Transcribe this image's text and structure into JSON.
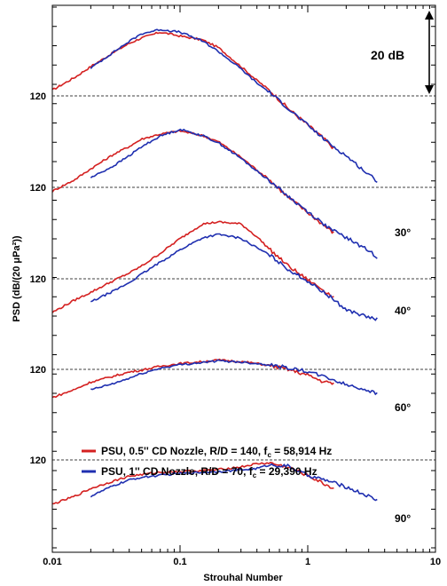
{
  "chart_data": {
    "type": "line",
    "xlabel": "Strouhal Number",
    "ylabel": "PSD (dB/(20 μPa²))",
    "x_scale": "log",
    "xlim": [
      0.01,
      10
    ],
    "x_ticks": [
      "0.01",
      "0.1",
      "1",
      "10"
    ],
    "reference_level_label": "120",
    "scale_bar_label": "20 dB",
    "colors": {
      "red": "#d42020",
      "blue": "#1f2fb0"
    },
    "legend": [
      {
        "color": "red",
        "label_main": "PSU, 0.5'' CD Nozzle, R/D = 140, f",
        "label_sub": "c",
        "label_tail": " = 58,914 Hz"
      },
      {
        "color": "blue",
        "label_main": "PSU,   1'' CD Nozzle, R/D = 70,  f",
        "label_sub": "c",
        "label_tail": " = 29,390 Hz"
      }
    ],
    "panels": [
      {
        "angle": "",
        "series": [
          {
            "color": "red",
            "x": [
              0.01,
              0.015,
              0.02,
              0.03,
              0.04,
              0.05,
              0.07,
              0.1,
              0.15,
              0.2,
              0.3,
              0.4,
              0.5,
              0.7,
              1.0,
              1.3,
              1.6
            ],
            "y": [
              121.5,
              124.8,
              127.6,
              131.2,
              133.6,
              135.0,
              136.5,
              135.5,
              134.5,
              132.5,
              127.6,
              124.0,
              121.5,
              116.8,
              112.5,
              109.3,
              106.4
            ]
          },
          {
            "color": "blue",
            "x": [
              0.02,
              0.03,
              0.04,
              0.05,
              0.07,
              0.1,
              0.15,
              0.2,
              0.3,
              0.4,
              0.5,
              0.7,
              1.0,
              1.5,
              2.0,
              3.0,
              3.5
            ],
            "y": [
              127.2,
              131.3,
              134.1,
              136.1,
              137.2,
              136.5,
              134.2,
              131.5,
              127.0,
              123.3,
              121.0,
              116.8,
              112.4,
              107.5,
              104.5,
              99.6,
              98.0
            ]
          }
        ]
      },
      {
        "angle": "30°",
        "series": [
          {
            "color": "red",
            "x": [
              0.01,
              0.015,
              0.02,
              0.03,
              0.04,
              0.05,
              0.07,
              0.1,
              0.15,
              0.2,
              0.3,
              0.4,
              0.5,
              0.7,
              1.0,
              1.3,
              1.6
            ],
            "y": [
              119.0,
              122.0,
              124.8,
              128.5,
              130.6,
              132.5,
              133.8,
              134.6,
              133.4,
              131.8,
              127.8,
              124.5,
              122.0,
              117.5,
              113.5,
              110.5,
              108.2
            ]
          },
          {
            "color": "blue",
            "x": [
              0.02,
              0.03,
              0.04,
              0.05,
              0.07,
              0.1,
              0.15,
              0.2,
              0.3,
              0.4,
              0.5,
              0.7,
              1.0,
              1.5,
              2.0,
              3.0,
              3.5
            ],
            "y": [
              122.5,
              125.5,
              128.2,
              130.5,
              133.3,
              135.0,
              133.4,
              131.5,
              127.5,
              124.2,
              121.8,
              117.7,
              113.7,
              109.2,
              107.0,
              103.6,
              102.0
            ]
          }
        ]
      },
      {
        "angle": "40°",
        "series": [
          {
            "color": "red",
            "x": [
              0.01,
              0.015,
              0.02,
              0.03,
              0.04,
              0.05,
              0.07,
              0.1,
              0.15,
              0.2,
              0.3,
              0.4,
              0.5,
              0.7,
              1.0,
              1.3,
              1.6
            ],
            "y": [
              111.3,
              114.5,
              116.5,
              119.5,
              121.5,
              123.3,
              126.6,
              130.4,
              134.2,
              134.7,
              134.2,
              130.9,
              127.7,
              123.4,
              119.7,
              117.3,
              115.2
            ]
          },
          {
            "color": "blue",
            "x": [
              0.02,
              0.03,
              0.04,
              0.05,
              0.07,
              0.1,
              0.15,
              0.2,
              0.3,
              0.4,
              0.5,
              0.7,
              1.0,
              1.5,
              2.0,
              3.0,
              3.5
            ],
            "y": [
              114.0,
              116.8,
              119.0,
              121.2,
              124.3,
              127.5,
              130.6,
              131.5,
              130.5,
              128.0,
              126.2,
              122.5,
              119.4,
              115.3,
              112.0,
              110.0,
              109.5
            ]
          }
        ]
      },
      {
        "angle": "60°",
        "series": [
          {
            "color": "red",
            "x": [
              0.01,
              0.015,
              0.02,
              0.03,
              0.04,
              0.05,
              0.07,
              0.1,
              0.15,
              0.2,
              0.3,
              0.4,
              0.5,
              0.7,
              1.0,
              1.3,
              1.6
            ],
            "y": [
              112.7,
              114.8,
              116.7,
              118.2,
              119.3,
              119.8,
              120.8,
              121.5,
              122.0,
              122.4,
              122.0,
              121.5,
              121.0,
              120.0,
              118.5,
              116.9,
              116.3
            ]
          },
          {
            "color": "blue",
            "x": [
              0.02,
              0.03,
              0.04,
              0.05,
              0.07,
              0.1,
              0.15,
              0.2,
              0.3,
              0.4,
              0.5,
              0.7,
              1.0,
              1.5,
              2.0,
              3.0,
              3.5
            ],
            "y": [
              114.7,
              116.3,
              117.7,
              118.9,
              120.3,
              121.2,
              121.8,
              122.2,
              121.9,
              121.5,
              121.2,
              120.4,
              119.4,
              117.6,
              116.0,
              114.6,
              113.6
            ]
          }
        ]
      },
      {
        "angle": "90°",
        "series": [
          {
            "color": "red",
            "x": [
              0.01,
              0.015,
              0.02,
              0.03,
              0.04,
              0.05,
              0.07,
              0.1,
              0.15,
              0.2,
              0.3,
              0.4,
              0.5,
              0.7,
              1.0,
              1.3,
              1.6
            ],
            "y": [
              108.5,
              110.6,
              112.6,
              114.5,
              115.8,
              116.2,
              116.8,
              117.0,
              117.2,
              117.5,
              118.2,
              119.0,
              119.2,
              118.1,
              116.0,
              114.0,
              112.6
            ]
          },
          {
            "color": "blue",
            "x": [
              0.02,
              0.03,
              0.04,
              0.05,
              0.07,
              0.1,
              0.15,
              0.2,
              0.3,
              0.4,
              0.5,
              0.7,
              1.0,
              1.5,
              2.0,
              3.0,
              3.5
            ],
            "y": [
              110.6,
              113.3,
              114.8,
              115.5,
              116.0,
              116.5,
              116.8,
              117.0,
              117.4,
              117.8,
              118.7,
              118.4,
              116.0,
              114.4,
              113.0,
              110.6,
              109.5
            ]
          }
        ]
      }
    ]
  }
}
